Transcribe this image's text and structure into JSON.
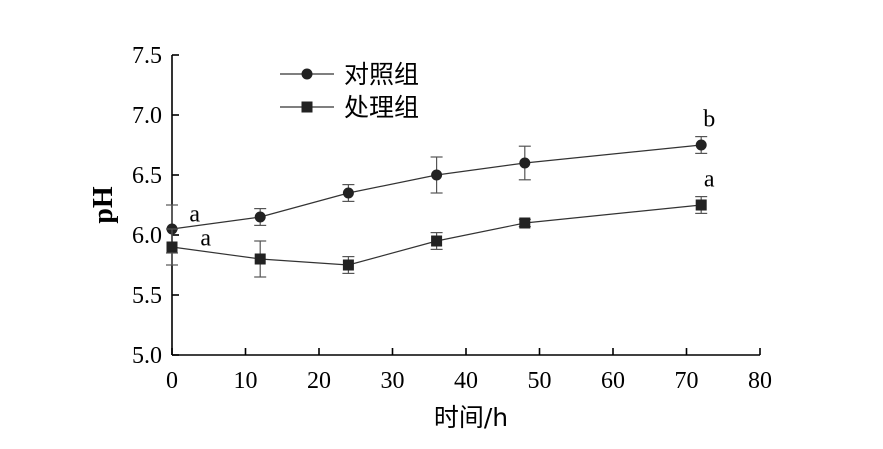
{
  "chart_data": {
    "type": "line",
    "title": "",
    "xlabel": "时间/h",
    "ylabel": "pH",
    "xlim": [
      0,
      80
    ],
    "ylim": [
      5.0,
      7.5
    ],
    "x_ticks": [
      0,
      10,
      20,
      30,
      40,
      50,
      60,
      70,
      80
    ],
    "y_ticks": [
      5.0,
      5.5,
      6.0,
      6.5,
      7.0,
      7.5
    ],
    "x_tick_labels": [
      "0",
      "10",
      "20",
      "30",
      "40",
      "50",
      "60",
      "70",
      "80"
    ],
    "y_tick_labels": [
      "5.0",
      "5.5",
      "6.0",
      "6.5",
      "7.0",
      "7.5"
    ],
    "grid": false,
    "legend_position": "top-left",
    "series": [
      {
        "name": "对照组",
        "marker": "circle",
        "x": [
          0,
          12,
          24,
          36,
          48,
          72
        ],
        "y": [
          6.05,
          6.15,
          6.35,
          6.5,
          6.6,
          6.75
        ],
        "error": [
          0.2,
          0.07,
          0.07,
          0.15,
          0.14,
          0.07
        ]
      },
      {
        "name": "处理组",
        "marker": "square",
        "x": [
          0,
          12,
          24,
          36,
          48,
          72
        ],
        "y": [
          5.9,
          5.8,
          5.75,
          5.95,
          6.1,
          6.25
        ],
        "error": [
          0.15,
          0.15,
          0.07,
          0.07,
          0.03,
          0.07
        ]
      }
    ],
    "annotations": [
      {
        "text": "a",
        "x": 2,
        "y": 6.18
      },
      {
        "text": "a",
        "x": 3.5,
        "y": 5.98
      },
      {
        "text": "b",
        "x": 72,
        "y": 6.97
      },
      {
        "text": "a",
        "x": 72,
        "y": 6.47
      }
    ]
  }
}
